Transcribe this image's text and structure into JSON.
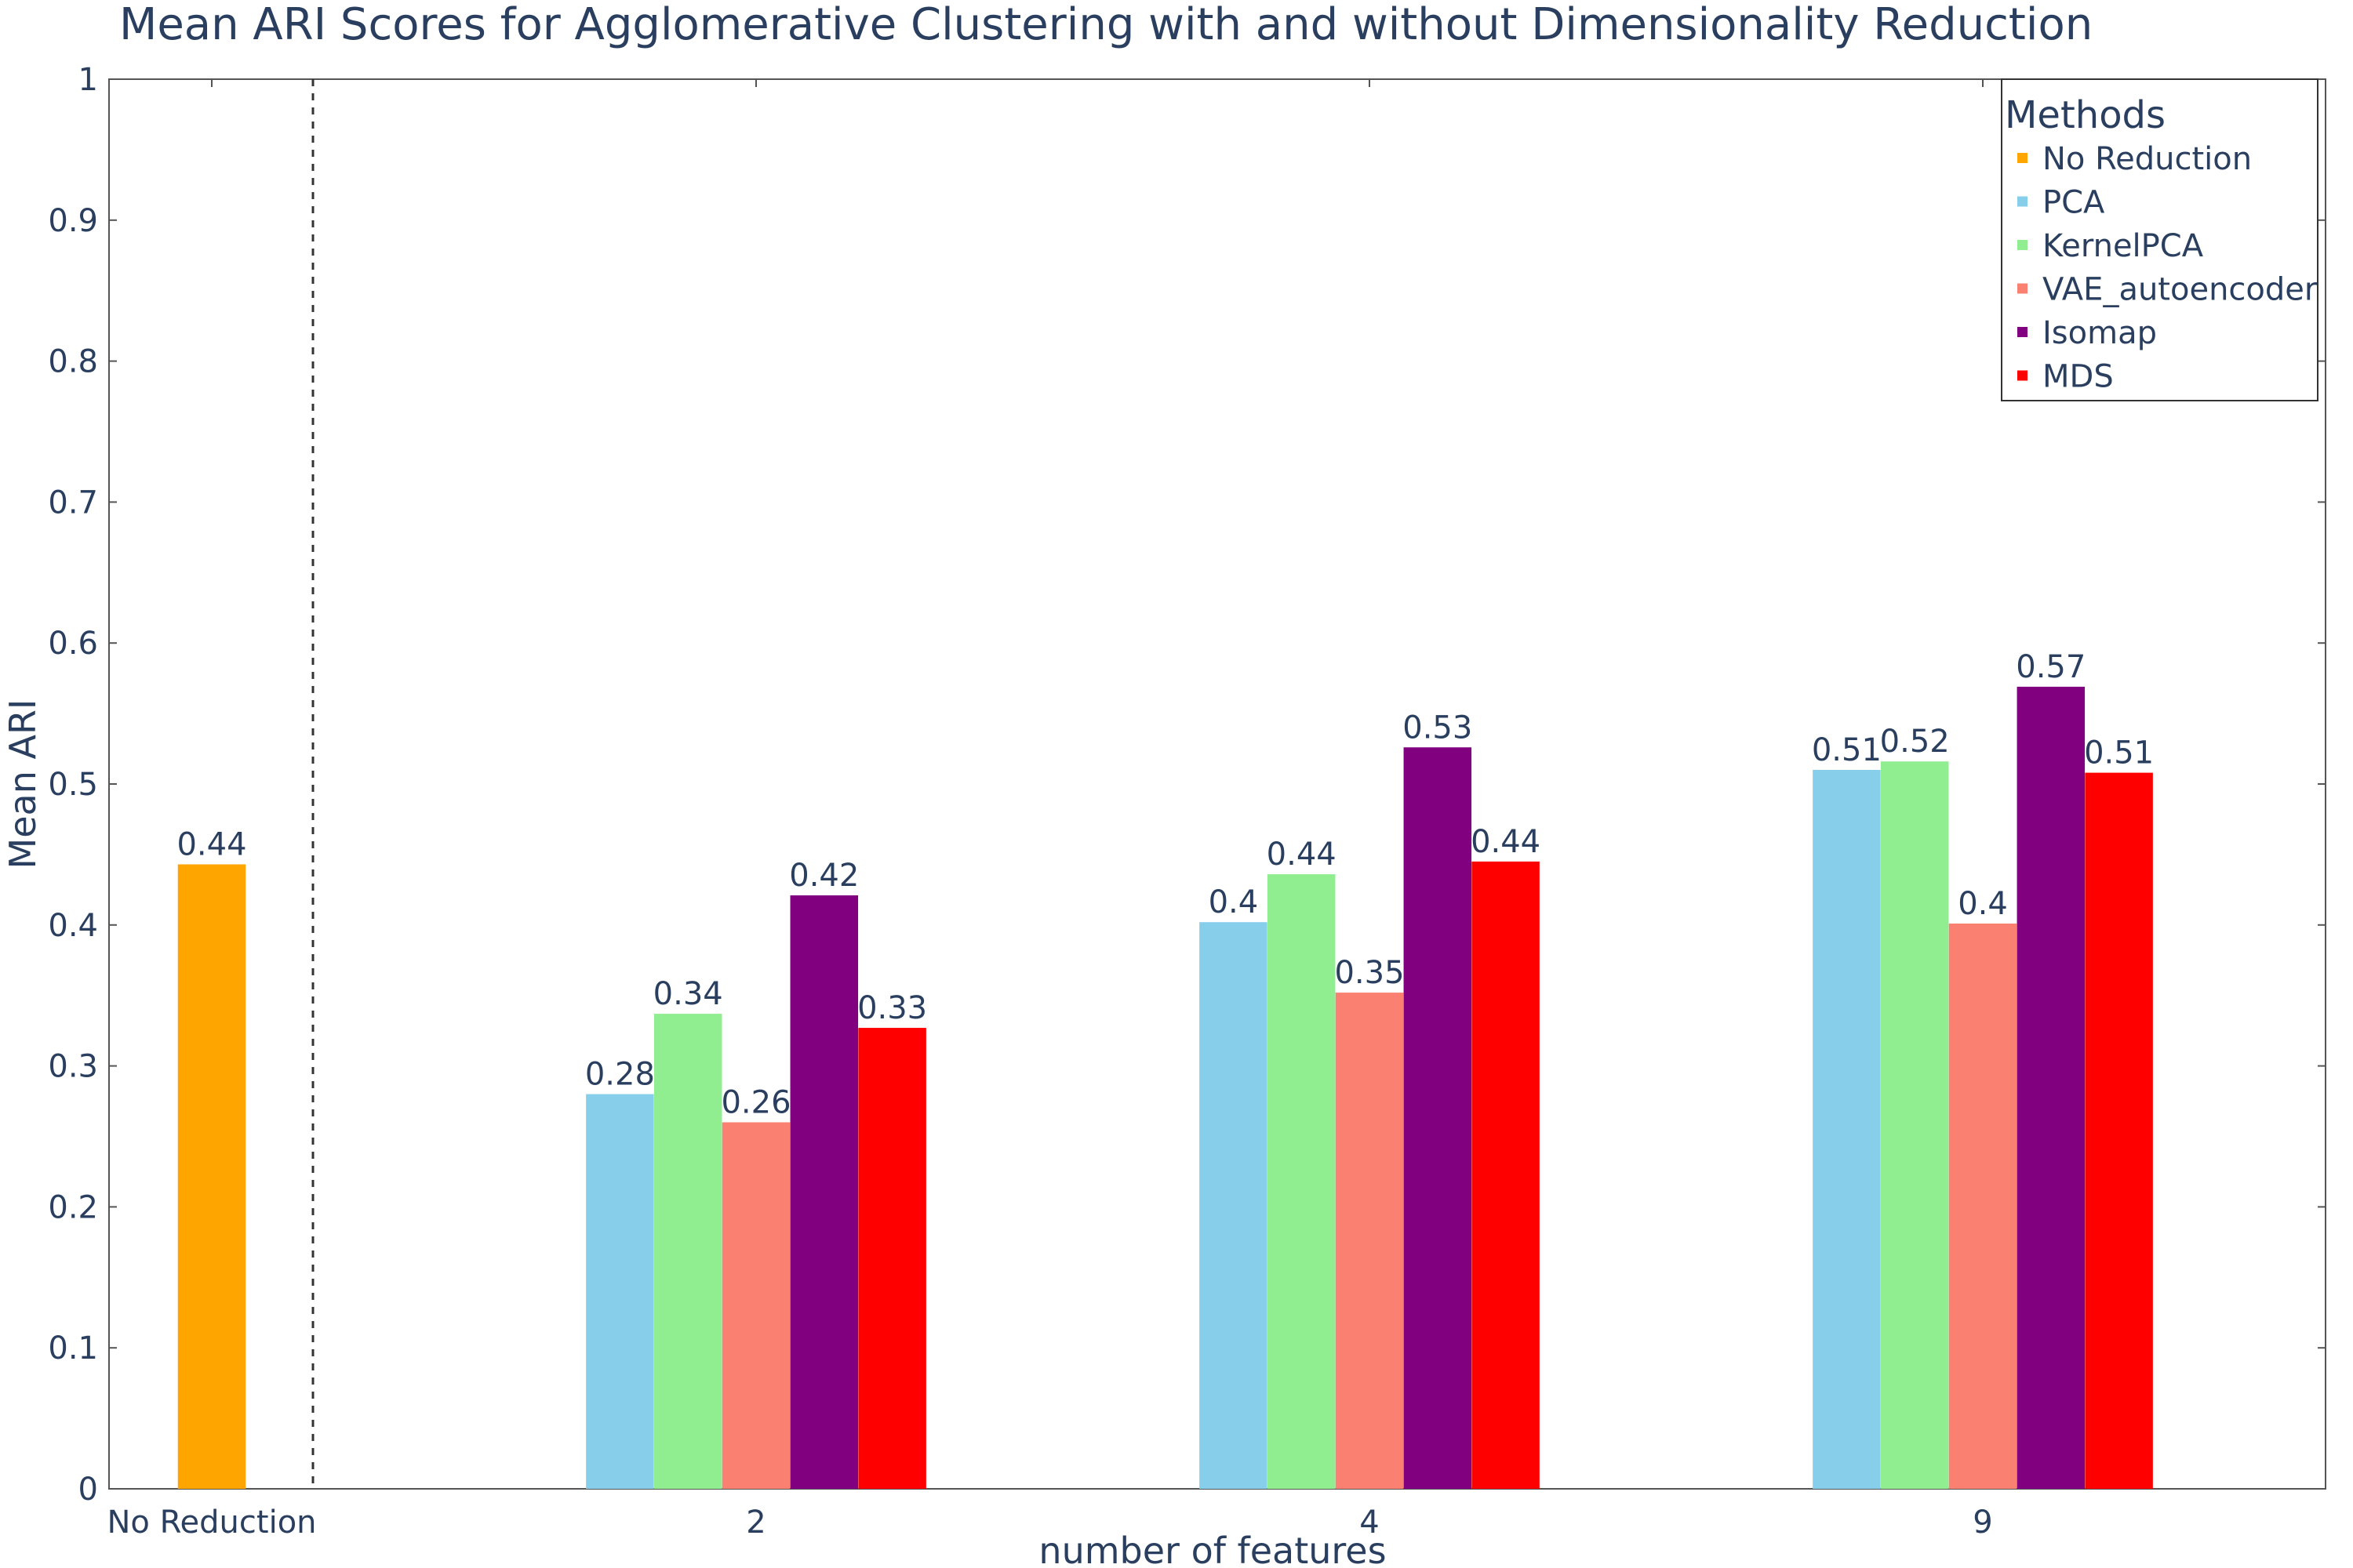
{
  "chart_data": {
    "type": "bar",
    "title": "Mean ARI Scores for Agglomerative Clustering with and without Dimensionality Reduction",
    "xlabel": "number of features",
    "ylabel": "Mean ARI",
    "ylim": [
      0,
      1
    ],
    "yticks": [
      "0",
      "0.1",
      "0.2",
      "0.3",
      "0.4",
      "0.5",
      "0.6",
      "0.7",
      "0.8",
      "0.9",
      "1"
    ],
    "grid": false,
    "legend_position": "top-right",
    "legend_title": "Methods",
    "categories": [
      "No Reduction",
      "2",
      "4",
      "9"
    ],
    "series": [
      {
        "name": "No Reduction",
        "color": "#FFA500",
        "values": [
          0.443,
          null,
          null,
          null
        ],
        "labels": [
          "0.44",
          null,
          null,
          null
        ]
      },
      {
        "name": "PCA",
        "color": "#87CEEB",
        "values": [
          null,
          0.28,
          0.402,
          0.51
        ],
        "labels": [
          null,
          "0.28",
          "0.4",
          "0.51"
        ]
      },
      {
        "name": "KernelPCA",
        "color": "#90EE90",
        "values": [
          null,
          0.337,
          0.436,
          0.516
        ],
        "labels": [
          null,
          "0.34",
          "0.44",
          "0.52"
        ]
      },
      {
        "name": "VAE_autoencoder",
        "color": "#FA8072",
        "values": [
          null,
          0.26,
          0.352,
          0.401
        ],
        "labels": [
          null,
          "0.26",
          "0.35",
          "0.4"
        ]
      },
      {
        "name": "Isomap",
        "color": "#800080",
        "values": [
          null,
          0.421,
          0.526,
          0.569
        ],
        "labels": [
          null,
          "0.42",
          "0.53",
          "0.57"
        ]
      },
      {
        "name": "MDS",
        "color": "#FF0000",
        "values": [
          null,
          0.327,
          0.445,
          0.508
        ],
        "labels": [
          null,
          "0.33",
          "0.44",
          "0.51"
        ]
      }
    ],
    "separator": "dashed vertical line between No Reduction and the reduced groups"
  }
}
